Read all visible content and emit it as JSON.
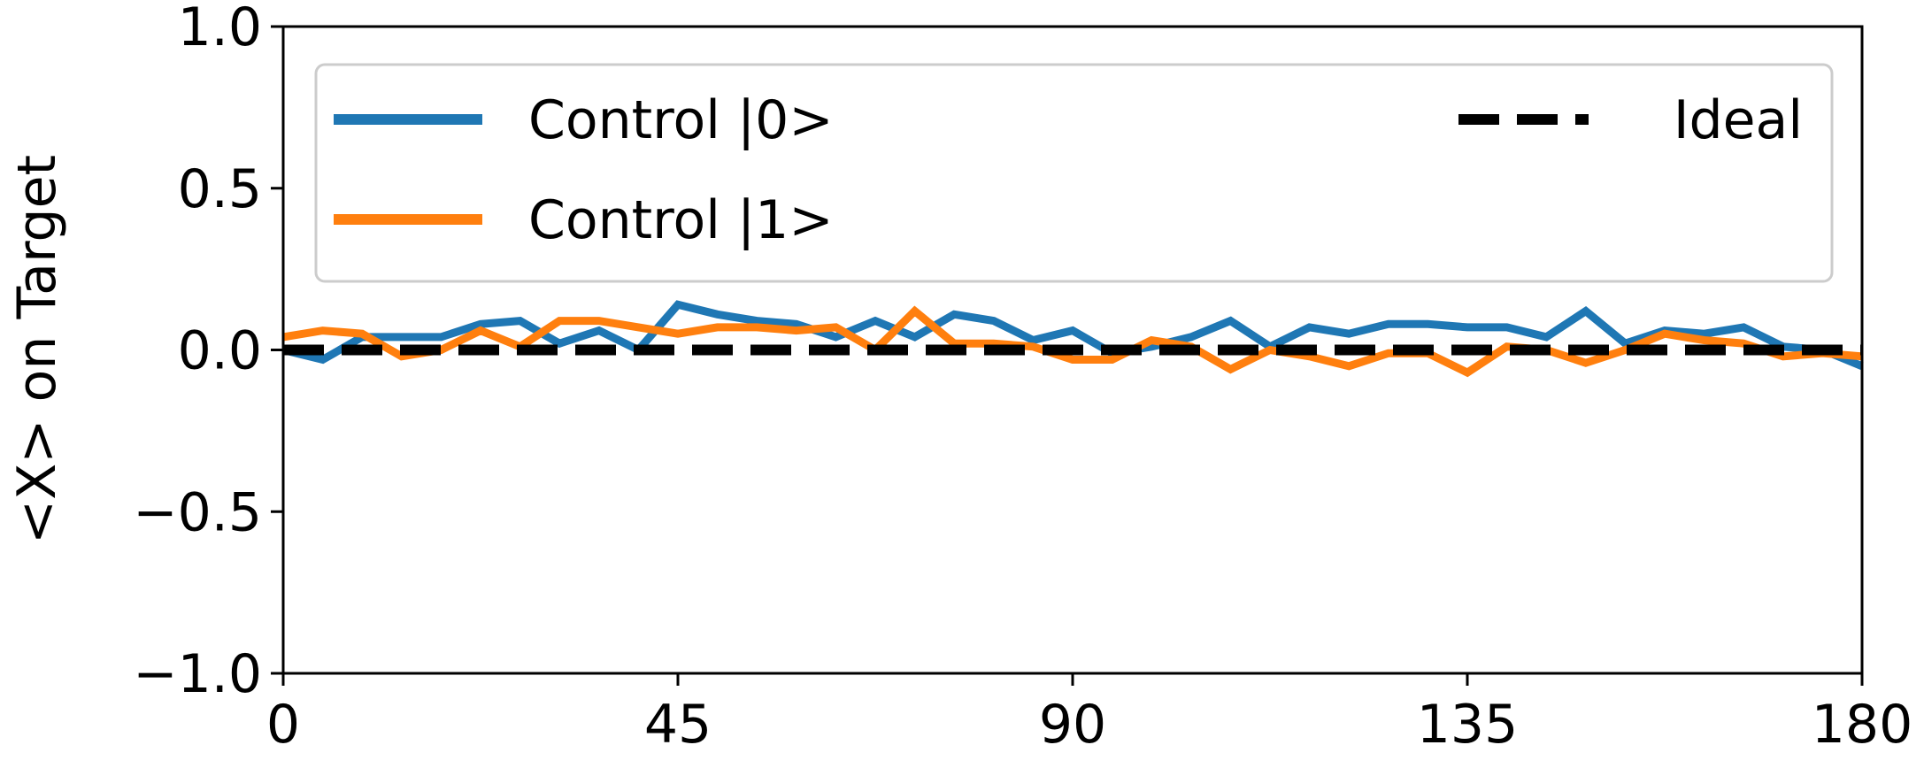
{
  "chart_data": {
    "type": "line",
    "xlabel": "",
    "ylabel": "<X> on Target",
    "xlim": [
      0,
      180
    ],
    "ylim": [
      -1.0,
      1.0
    ],
    "xticks": [
      0,
      45,
      90,
      135,
      180
    ],
    "xtick_labels": [
      "0",
      "45",
      "90",
      "135",
      "180"
    ],
    "yticks": [
      1.0,
      0.5,
      0.0,
      -0.5,
      -1.0
    ],
    "ytick_labels": [
      "1.0",
      "0.5",
      "0.0",
      "−0.5",
      "−1.0"
    ],
    "grid": false,
    "legend_placement": "top",
    "x": [
      0,
      4.5,
      9,
      13.5,
      18,
      22.5,
      27,
      31.5,
      36,
      40.5,
      45,
      49.5,
      54,
      58.5,
      63,
      67.5,
      72,
      76.5,
      81,
      85.5,
      90,
      94.5,
      99,
      103.5,
      108,
      112.5,
      117,
      121.5,
      126,
      130.5,
      135,
      139.5,
      144,
      148.5,
      153,
      157.5,
      162,
      166.5,
      171,
      175.5,
      180
    ],
    "series": [
      {
        "name": "Control |0>",
        "color": "#1f77b4",
        "values": [
          0.0,
          -0.03,
          0.04,
          0.04,
          0.04,
          0.08,
          0.09,
          0.02,
          0.06,
          0.0,
          0.14,
          0.11,
          0.09,
          0.08,
          0.04,
          0.09,
          0.04,
          0.11,
          0.09,
          0.03,
          0.06,
          -0.01,
          0.01,
          0.04,
          0.09,
          0.01,
          0.07,
          0.05,
          0.08,
          0.08,
          0.07,
          0.07,
          0.04,
          0.12,
          0.02,
          0.06,
          0.05,
          0.07,
          0.01,
          0.0,
          -0.05
        ]
      },
      {
        "name": "Control |1>",
        "color": "#ff7f0e",
        "values": [
          0.04,
          0.06,
          0.05,
          -0.02,
          0.0,
          0.06,
          0.01,
          0.09,
          0.09,
          0.07,
          0.05,
          0.07,
          0.07,
          0.06,
          0.07,
          0.0,
          0.12,
          0.02,
          0.02,
          0.01,
          -0.03,
          -0.03,
          0.03,
          0.01,
          -0.06,
          0.0,
          -0.02,
          -0.05,
          -0.01,
          -0.01,
          -0.07,
          0.01,
          0.0,
          -0.04,
          0.0,
          0.05,
          0.03,
          0.02,
          -0.02,
          -0.01,
          -0.02
        ]
      },
      {
        "name": "Ideal",
        "color": "#000000",
        "dashed": true,
        "values": [
          0,
          0,
          0,
          0,
          0,
          0,
          0,
          0,
          0,
          0,
          0,
          0,
          0,
          0,
          0,
          0,
          0,
          0,
          0,
          0,
          0,
          0,
          0,
          0,
          0,
          0,
          0,
          0,
          0,
          0,
          0,
          0,
          0,
          0,
          0,
          0,
          0,
          0,
          0,
          0,
          0
        ]
      }
    ]
  }
}
